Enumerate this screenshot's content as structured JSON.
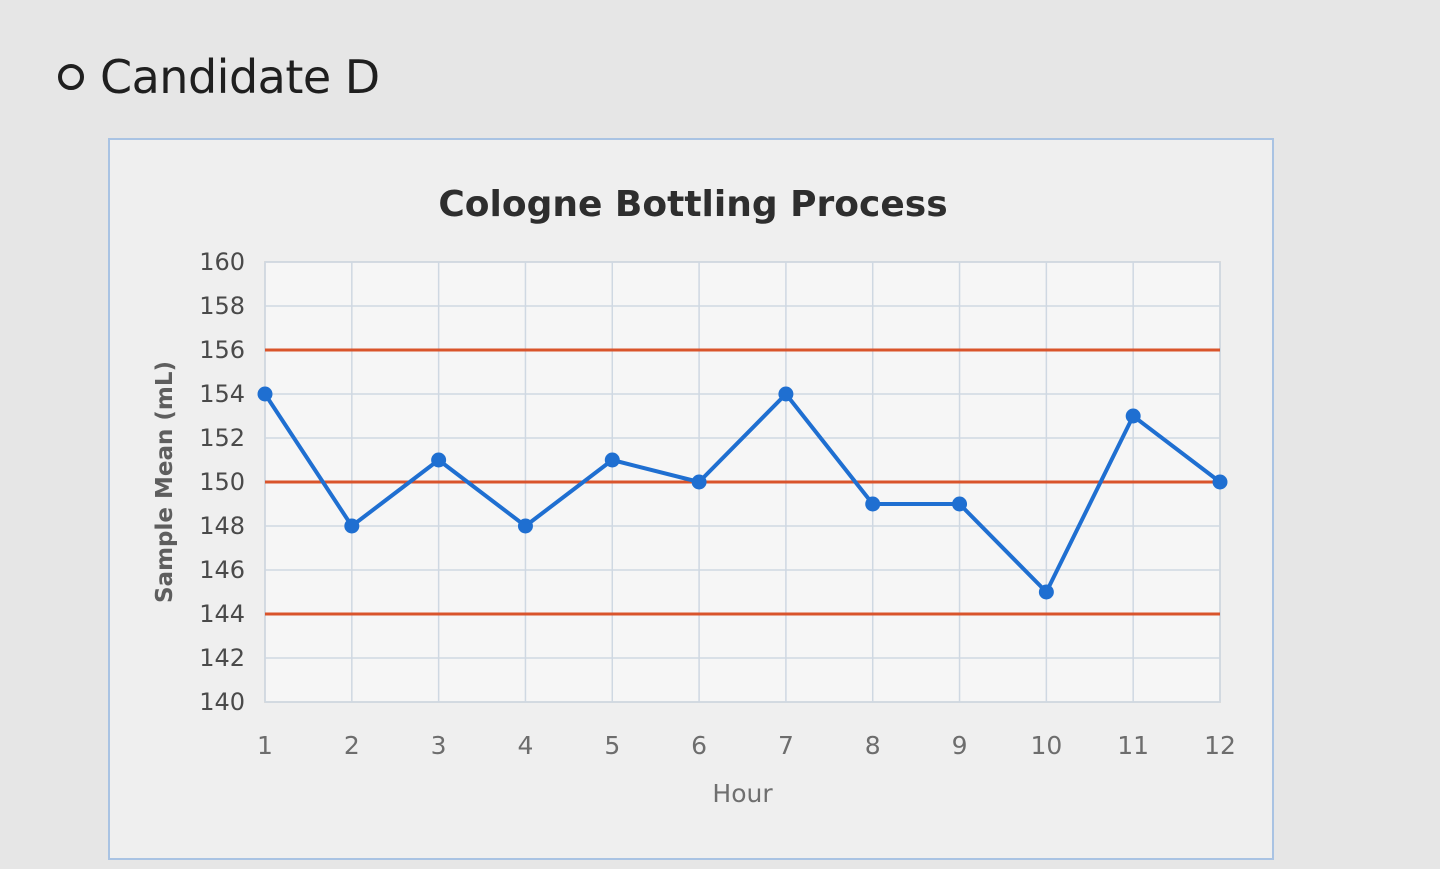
{
  "option": {
    "label": "Candidate D",
    "selected": false
  },
  "chart_data": {
    "type": "line",
    "title": "Cologne Bottling Process",
    "xlabel": "Hour",
    "ylabel": "Sample Mean (mL)",
    "categories": [
      "1",
      "2",
      "3",
      "4",
      "5",
      "6",
      "7",
      "8",
      "9",
      "10",
      "11",
      "12"
    ],
    "yticks": [
      140,
      142,
      144,
      146,
      148,
      150,
      152,
      154,
      156,
      158,
      160
    ],
    "ylim": [
      140,
      160
    ],
    "grid": true,
    "series": [
      {
        "values": [
          154,
          148,
          151,
          148,
          151,
          150,
          154,
          149,
          149,
          145,
          153,
          150
        ],
        "color": "#1f6fd1"
      }
    ],
    "reference_lines": [
      {
        "value": 156,
        "color": "#d9542b"
      },
      {
        "value": 150,
        "color": "#d9542b"
      },
      {
        "value": 144,
        "color": "#d9542b"
      }
    ]
  }
}
